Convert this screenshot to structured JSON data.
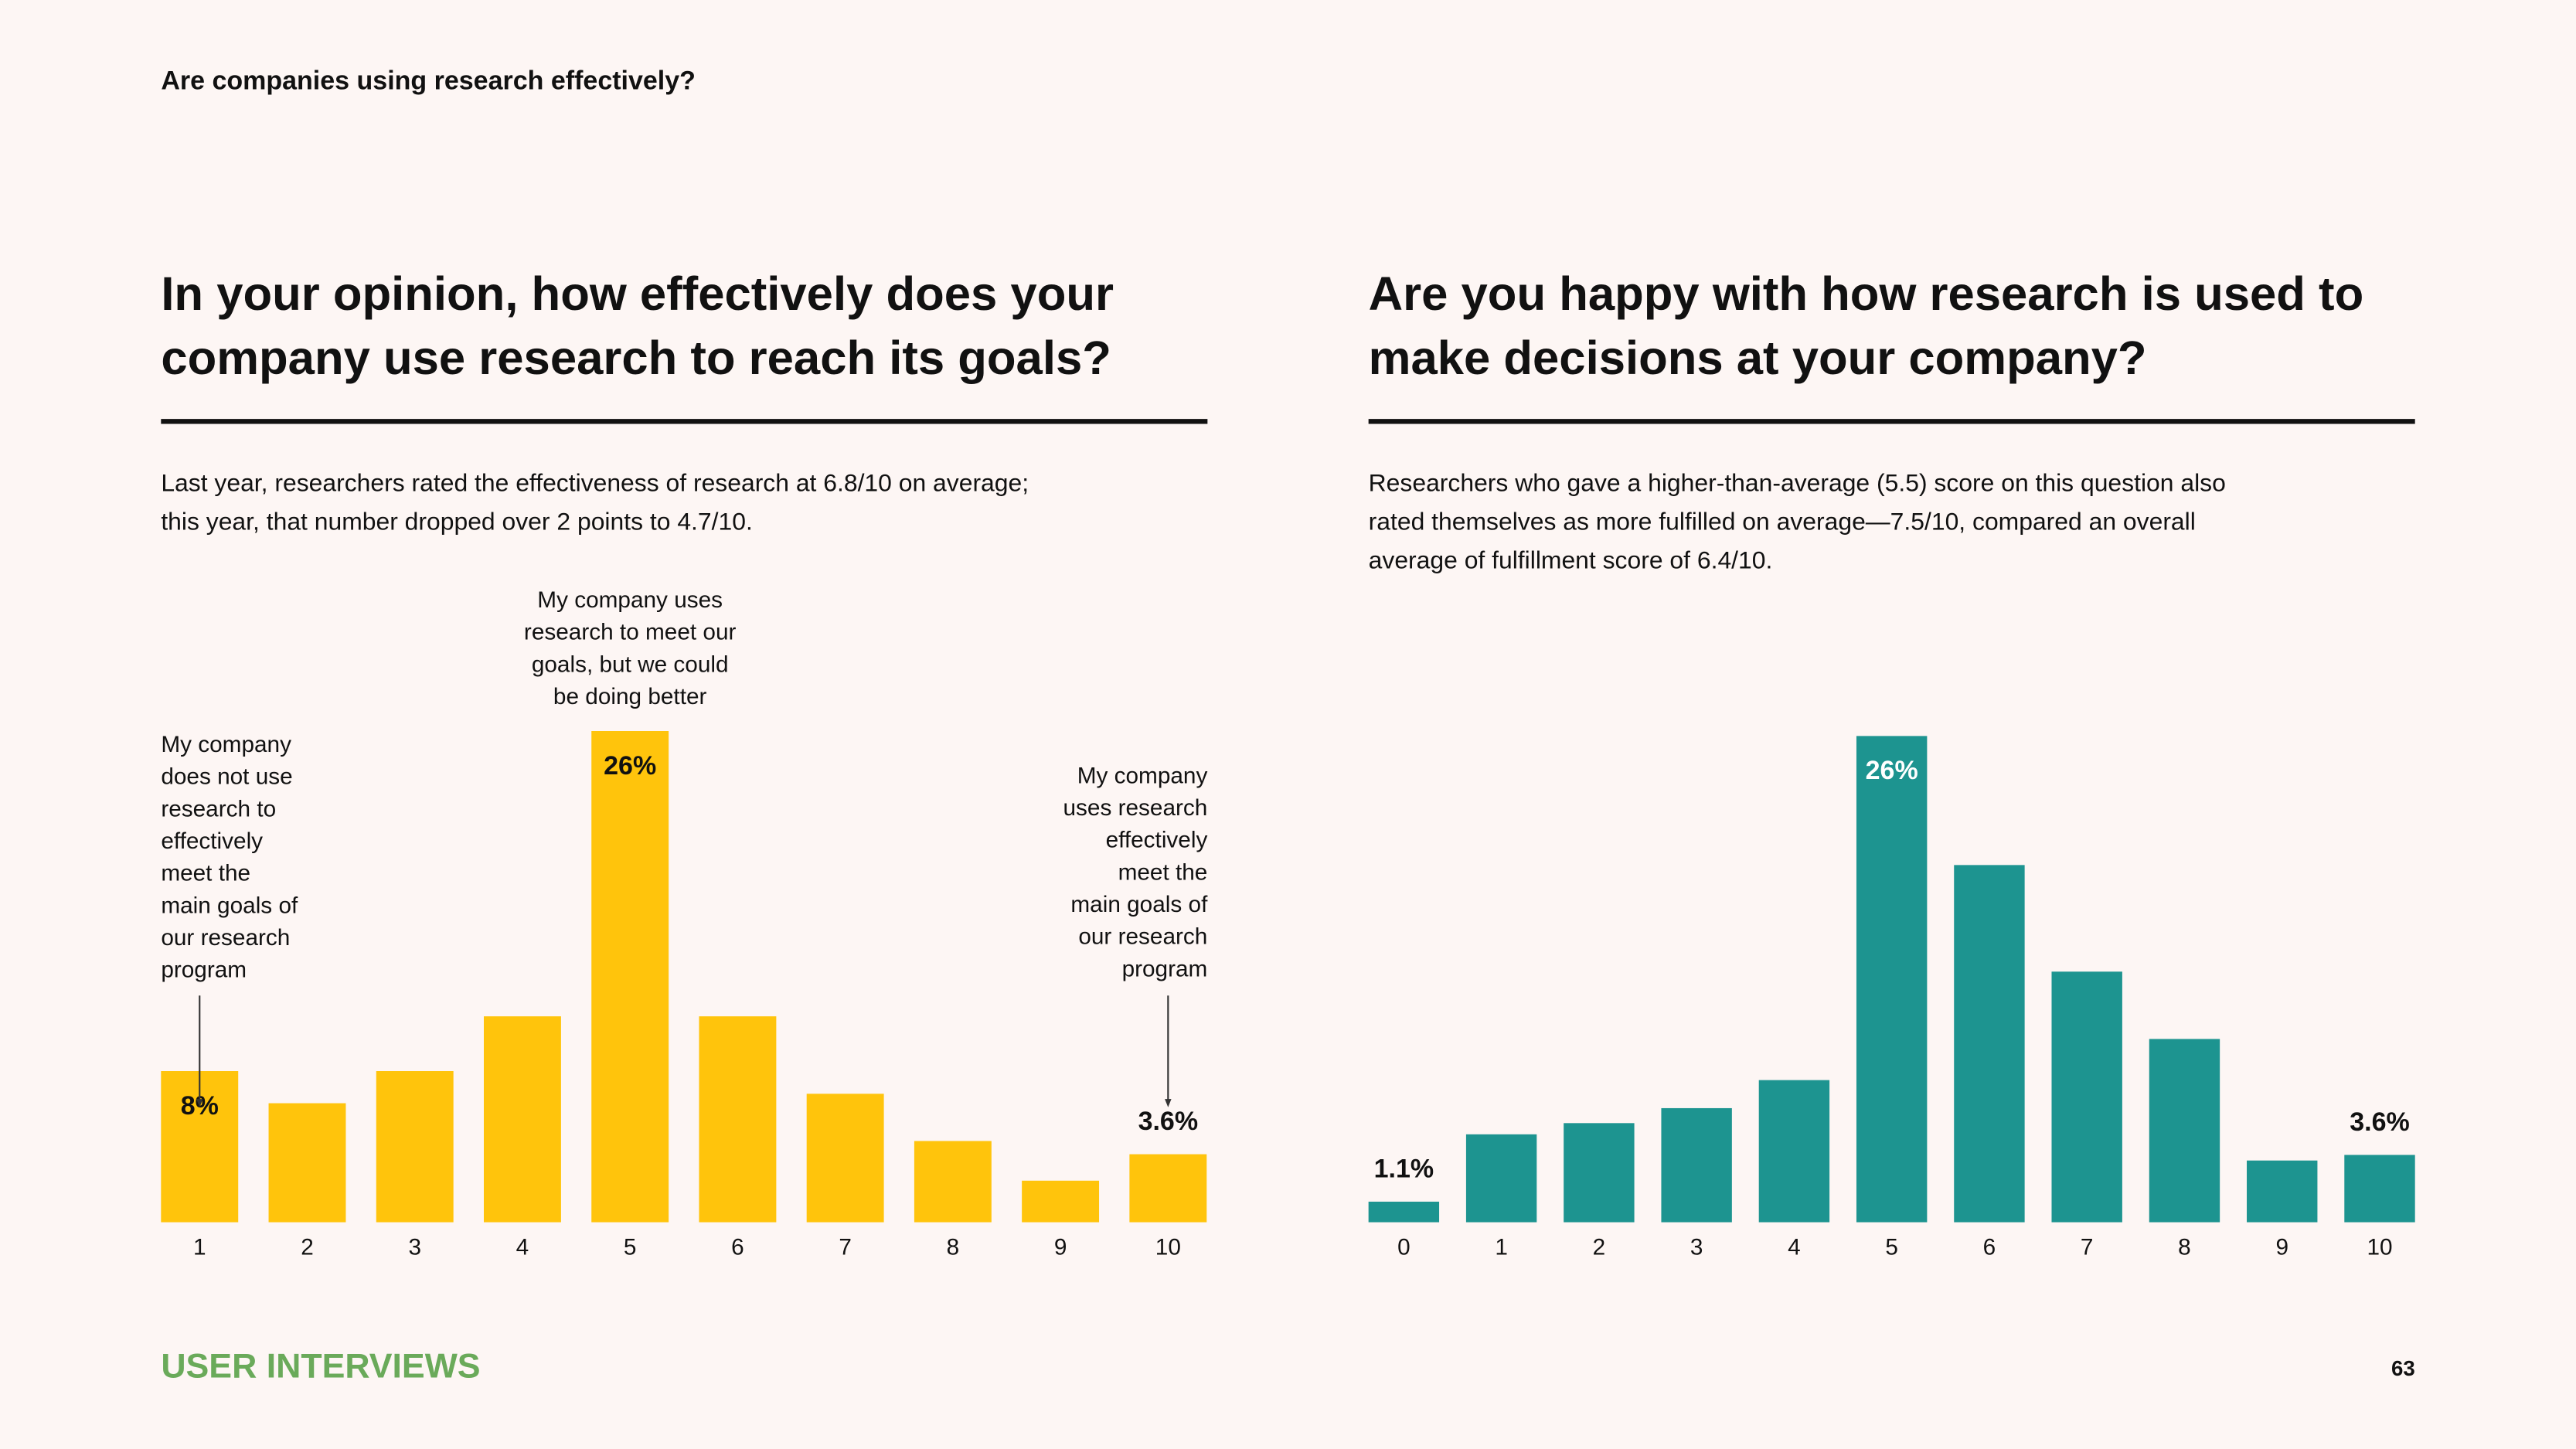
{
  "header": "Are companies using research effectively?",
  "chart_data": [
    {
      "type": "bar",
      "title": [
        "In your opinion, how effectively does your",
        "company use research to reach its goals?"
      ],
      "subtitle": [
        "Last year, researchers rated the effectiveness of research at 6.8/10 on average;",
        "this year, that number dropped over 2 points to 4.7/10."
      ],
      "categories": [
        "1",
        "2",
        "3",
        "4",
        "5",
        "6",
        "7",
        "8",
        "9",
        "10"
      ],
      "values": [
        8,
        6.3,
        8,
        10.9,
        26,
        10.9,
        6.8,
        4.3,
        2.2,
        3.6
      ],
      "value_labels": [
        "8%",
        null,
        null,
        null,
        "26%",
        null,
        null,
        null,
        null,
        "3.6%"
      ],
      "color": "#ffc40c",
      "annotations": [
        [
          "My company",
          "does not use",
          "research to",
          "effectively",
          "meet the",
          "main goals of",
          "our research",
          "program"
        ],
        [
          "My company uses",
          "research to meet our",
          "goals, but we could",
          "be doing better"
        ],
        [
          "My company",
          "uses research",
          "effectively",
          "meet the",
          "main goals of",
          "our research",
          "program"
        ]
      ]
    },
    {
      "type": "bar",
      "title": [
        "Are you happy with how research is used to",
        "make decisions at your company?"
      ],
      "subtitle": [
        "Researchers who gave a higher-than-average (5.5) score on this question also",
        "rated themselves as more fulfilled on average—7.5/10, compared an overall",
        "average of fulfillment score of 6.4/10."
      ],
      "categories": [
        "0",
        "1",
        "2",
        "3",
        "4",
        "5",
        "6",
        "7",
        "8",
        "9",
        "10"
      ],
      "values": [
        1.1,
        4.7,
        5.3,
        6.1,
        7.6,
        26,
        19.1,
        13.4,
        9.8,
        3.3,
        3.6
      ],
      "value_labels": [
        "1.1%",
        null,
        null,
        null,
        null,
        "26%",
        null,
        null,
        null,
        null,
        "3.6%"
      ],
      "color": "#1d9490"
    }
  ],
  "footer": {
    "brand": "USER INTERVIEWS",
    "page": "63"
  }
}
